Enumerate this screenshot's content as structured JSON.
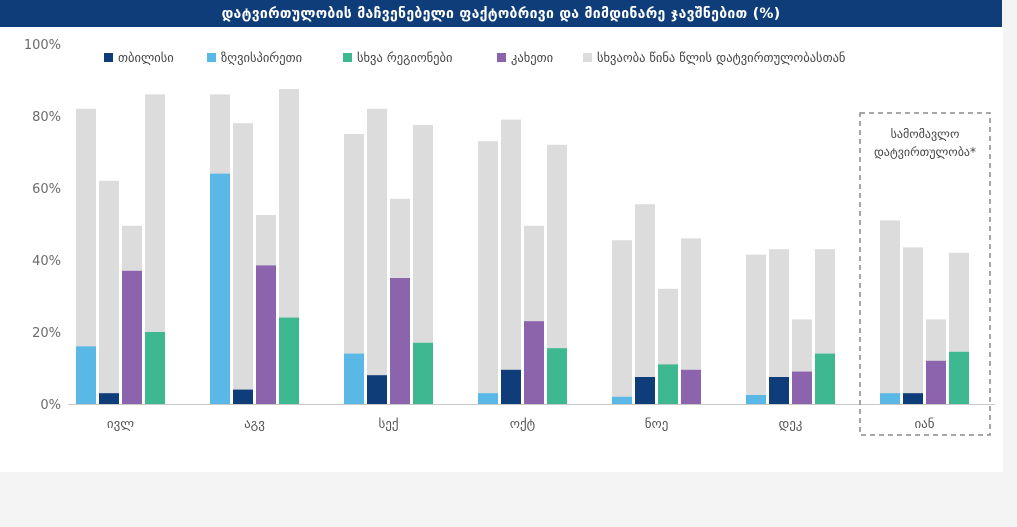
{
  "title": "დატვირთულობის მაჩვენებელი ფაქტობრივი და მიმდინარე ჯავშნებით (%)",
  "chart_data": {
    "type": "bar",
    "ylim": [
      0,
      100
    ],
    "yticks": [
      "0%",
      "20%",
      "40%",
      "60%",
      "80%",
      "100%"
    ],
    "ytick_values": [
      0,
      20,
      40,
      60,
      80,
      100
    ],
    "categories": [
      "ივლ",
      "აგვ",
      "სექ",
      "ოქტ",
      "ნოე",
      "დეკ",
      "იან"
    ],
    "series": [
      {
        "name": "თბილისი",
        "color": "#0f3d7a"
      },
      {
        "name": "ზღვისპირეთი",
        "color": "#5ab8e6"
      },
      {
        "name": "სხვა რეგიონები",
        "color": "#3db890"
      },
      {
        "name": "კახეთი",
        "color": "#8c63ad"
      },
      {
        "name": "სხვაობა წინა წლის დატვირთულობასთან",
        "color": "#dcdcdc"
      }
    ],
    "groups": [
      {
        "category": "ივლ",
        "bars": [
          {
            "region": "ზღვისპირეთი",
            "value": 16,
            "total": 82
          },
          {
            "region": "თბილისი",
            "value": 3,
            "total": 62
          },
          {
            "region": "კახეთი",
            "value": 37,
            "total": 49.5
          },
          {
            "region": "სხვა რეგიონები",
            "value": 20,
            "total": 86
          }
        ]
      },
      {
        "category": "აგვ",
        "bars": [
          {
            "region": "ზღვისპირეთი",
            "value": 64,
            "total": 86
          },
          {
            "region": "თბილისი",
            "value": 4,
            "total": 78
          },
          {
            "region": "კახეთი",
            "value": 38.5,
            "total": 52.5
          },
          {
            "region": "სხვა რეგიონები",
            "value": 24,
            "total": 87.5
          }
        ]
      },
      {
        "category": "სექ",
        "bars": [
          {
            "region": "ზღვისპირეთი",
            "value": 14,
            "total": 75
          },
          {
            "region": "თბილისი",
            "value": 8,
            "total": 82
          },
          {
            "region": "კახეთი",
            "value": 35,
            "total": 57
          },
          {
            "region": "სხვა რეგიონები",
            "value": 17,
            "total": 77.5
          }
        ]
      },
      {
        "category": "ოქტ",
        "bars": [
          {
            "region": "ზღვისპირეთი",
            "value": 3,
            "total": 73
          },
          {
            "region": "თბილისი",
            "value": 9.5,
            "total": 79
          },
          {
            "region": "კახეთი",
            "value": 23,
            "total": 49.5
          },
          {
            "region": "სხვა რეგიონები",
            "value": 15.5,
            "total": 72
          }
        ]
      },
      {
        "category": "ნოე",
        "bars": [
          {
            "region": "ზღვისპირეთი",
            "value": 2,
            "total": 45.5
          },
          {
            "region": "თბილისი",
            "value": 7.5,
            "total": 55.5
          },
          {
            "region": "სხვა რეგიონები",
            "value": 11,
            "total": 32
          },
          {
            "region": "კახეთი",
            "value": 9.5,
            "total": 46
          }
        ]
      },
      {
        "category": "დეკ",
        "bars": [
          {
            "region": "ზღვისპირეთი",
            "value": 2.5,
            "total": 41.5
          },
          {
            "region": "თბილისი",
            "value": 7.5,
            "total": 43
          },
          {
            "region": "კახეთი",
            "value": 9,
            "total": 23.5
          },
          {
            "region": "სხვა რეგიონები",
            "value": 14,
            "total": 43
          }
        ]
      },
      {
        "category": "იან",
        "bars": [
          {
            "region": "ზღვისპირეთი",
            "value": 3,
            "total": 51
          },
          {
            "region": "თბილისი",
            "value": 3,
            "total": 43.5
          },
          {
            "region": "კახეთი",
            "value": 12,
            "total": 23.5
          },
          {
            "region": "სხვა რეგიონები",
            "value": 14.5,
            "total": 42
          }
        ]
      }
    ],
    "annotation": {
      "lines": [
        "სამომავლო",
        "დატვირთულობა*"
      ],
      "category": "იან"
    },
    "legend_position": "top",
    "grid": false
  }
}
